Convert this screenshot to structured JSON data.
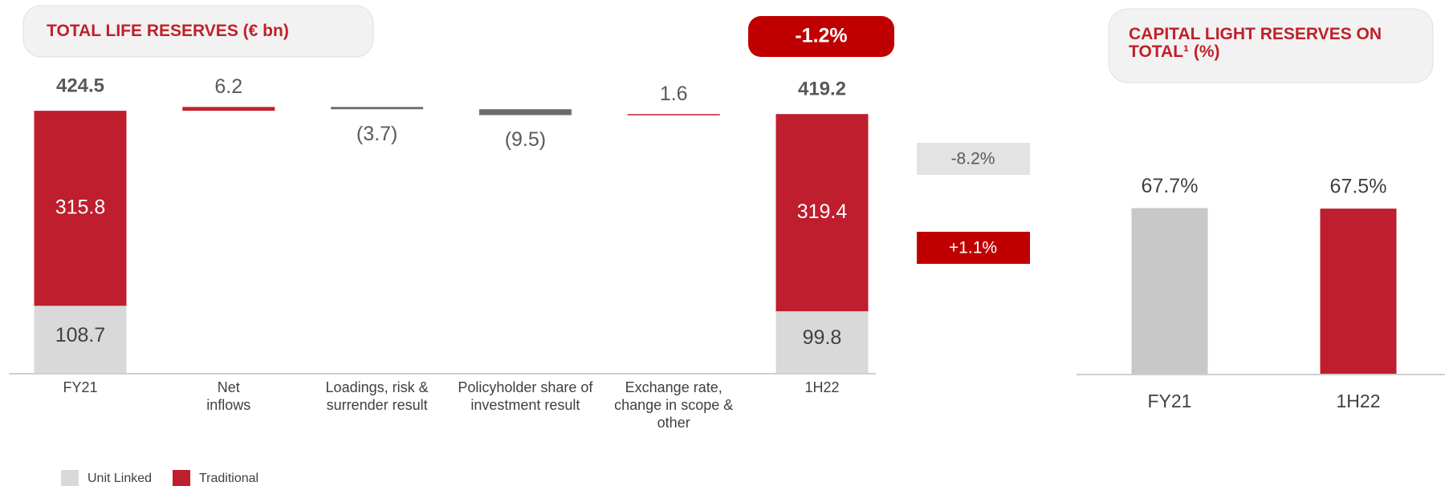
{
  "chart_data": [
    {
      "type": "waterfall",
      "title": "TOTAL LIFE RESERVES (€ bn)",
      "categories": [
        "FY21",
        "Net inflows",
        "Loadings, risk & surrender result",
        "Policyholder share of investment result",
        "Exchange rate, change in scope & other",
        "1H22"
      ],
      "series": [
        {
          "name": "Unit Linked",
          "color": "#d9d9d9",
          "values": [
            108.7,
            null,
            null,
            null,
            null,
            99.8
          ],
          "change": {
            "value": -8.2,
            "label": "-8.2%"
          }
        },
        {
          "name": "Traditional",
          "color": "#be1e2d",
          "values": [
            315.8,
            null,
            null,
            null,
            null,
            319.4
          ],
          "change": {
            "value": 1.1,
            "label": "+1.1%"
          }
        }
      ],
      "totals": [
        424.5,
        null,
        null,
        null,
        null,
        419.2
      ],
      "changes": {
        "values": [
          null,
          6.2,
          -3.7,
          -9.5,
          1.6,
          null
        ],
        "value_labels": [
          null,
          "6.2",
          "(3.7)",
          "(9.5)",
          "1.6",
          null
        ],
        "positive_color": "#c0202a",
        "negative_color": "#6b6b6b"
      },
      "total_change": {
        "value": -1.2,
        "label": "-1.2%"
      }
    },
    {
      "type": "bar",
      "title": "CAPITAL LIGHT RESERVES ON TOTAL¹ (%)",
      "categories": [
        "FY21",
        "1H22"
      ],
      "values": [
        67.7,
        67.5
      ],
      "value_labels": [
        "67.7%",
        "67.5%"
      ],
      "colors": [
        "#c8c8c8",
        "#be1e2d"
      ]
    }
  ]
}
